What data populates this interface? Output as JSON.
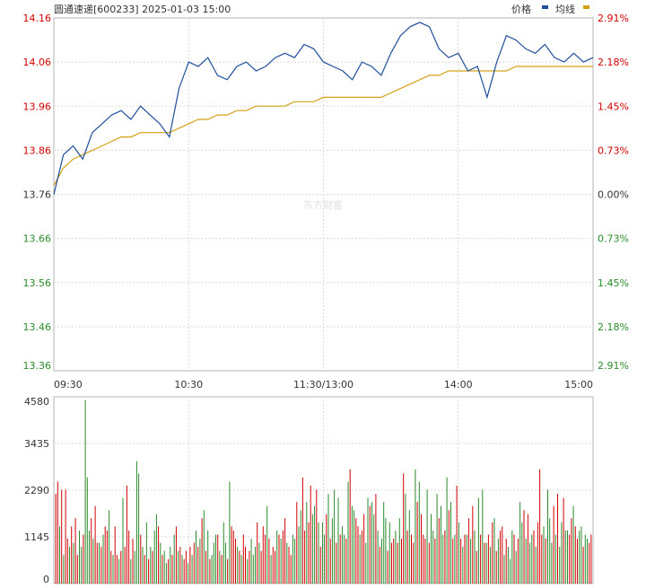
{
  "header": {
    "title": "圆通速递[600233] 2025-01-03 15:00",
    "legend_price": "价格",
    "legend_avg": "均线"
  },
  "watermark": "东方财富",
  "colors": {
    "price_line": "#1f4e9a",
    "avg_line": "#d4a017",
    "up": "#d00000",
    "down": "#2b8a2b",
    "neutral": "#333333"
  },
  "chart_data": [
    {
      "type": "line",
      "title": "圆通速递[600233] 2025-01-03 15:00",
      "prev_close": 13.76,
      "ylim": [
        13.36,
        14.16
      ],
      "y_ticks": [
        "14.16",
        "14.06",
        "13.96",
        "13.86",
        "13.76",
        "13.66",
        "13.56",
        "13.46",
        "13.36"
      ],
      "pct_ticks": [
        "2.91%",
        "2.18%",
        "1.45%",
        "0.73%",
        "0.00%",
        "0.73%",
        "1.45%",
        "2.18%",
        "2.91%"
      ],
      "x_ticks": [
        "09:30",
        "10:30",
        "11:30/13:00",
        "14:00",
        "15:00"
      ],
      "grid": true,
      "series": [
        {
          "name": "价格",
          "values": [
            13.76,
            13.85,
            13.87,
            13.84,
            13.9,
            13.92,
            13.94,
            13.95,
            13.93,
            13.96,
            13.94,
            13.92,
            13.89,
            14.0,
            14.06,
            14.05,
            14.07,
            14.03,
            14.02,
            14.05,
            14.06,
            14.04,
            14.05,
            14.07,
            14.08,
            14.07,
            14.1,
            14.09,
            14.06,
            14.05,
            14.04,
            14.02,
            14.06,
            14.05,
            14.03,
            14.08,
            14.12,
            14.14,
            14.15,
            14.14,
            14.09,
            14.07,
            14.08,
            14.04,
            14.05,
            13.98,
            14.06,
            14.12,
            14.11,
            14.09,
            14.08,
            14.1,
            14.07,
            14.06,
            14.08,
            14.06,
            14.07
          ]
        },
        {
          "name": "均线",
          "values": [
            13.78,
            13.82,
            13.84,
            13.85,
            13.86,
            13.87,
            13.88,
            13.89,
            13.89,
            13.9,
            13.9,
            13.9,
            13.9,
            13.91,
            13.92,
            13.93,
            13.93,
            13.94,
            13.94,
            13.95,
            13.95,
            13.96,
            13.96,
            13.96,
            13.96,
            13.97,
            13.97,
            13.97,
            13.98,
            13.98,
            13.98,
            13.98,
            13.98,
            13.98,
            13.98,
            13.99,
            14.0,
            14.01,
            14.02,
            14.03,
            14.03,
            14.04,
            14.04,
            14.04,
            14.04,
            14.04,
            14.04,
            14.04,
            14.05,
            14.05,
            14.05,
            14.05,
            14.05,
            14.05,
            14.05,
            14.05,
            14.05
          ]
        }
      ]
    },
    {
      "type": "bar",
      "ylim": [
        0,
        4580
      ],
      "y_ticks": [
        "4580",
        "3435",
        "2290",
        "1145",
        "0"
      ],
      "values": [
        2200,
        2500,
        1400,
        2300,
        700,
        2300,
        1100,
        900,
        1400,
        1000,
        1600,
        700,
        1300,
        900,
        1200,
        4500,
        2600,
        1300,
        1600,
        1100,
        1900,
        1000,
        1000,
        900,
        1200,
        1400,
        1300,
        1800,
        800,
        700,
        1400,
        700,
        600,
        800,
        2100,
        900,
        2400,
        1300,
        600,
        1100,
        800,
        3000,
        2700,
        1200,
        900,
        700,
        1500,
        600,
        900,
        800,
        1300,
        1700,
        1400,
        1000,
        700,
        800,
        500,
        600,
        900,
        700,
        1200,
        1400,
        800,
        900,
        700,
        600,
        800,
        500,
        900,
        700,
        1000,
        1300,
        900,
        1100,
        1600,
        1800,
        800,
        1300,
        600,
        700,
        1000,
        1200,
        1200,
        800,
        700,
        1500,
        1000,
        600,
        2500,
        1400,
        1300,
        1100,
        900,
        800,
        700,
        1200,
        900,
        600,
        800,
        1100,
        700,
        900,
        1500,
        1000,
        800,
        1400,
        1200,
        1900,
        1100,
        700,
        900,
        800,
        1300,
        1200,
        1100,
        1300,
        1600,
        1000,
        900,
        700,
        1200,
        1100,
        2000,
        1400,
        1800,
        2600,
        1300,
        2000,
        1500,
        2400,
        1700,
        1900,
        2300,
        1500,
        900,
        1500,
        1200,
        1700,
        2200,
        1100,
        1600,
        2300,
        1000,
        2100,
        1200,
        1400,
        1200,
        1100,
        2500,
        2800,
        1900,
        1800,
        1600,
        1400,
        1200,
        1300,
        1700,
        1000,
        2100,
        1900,
        2000,
        1700,
        2200,
        1300,
        900,
        1100,
        2000,
        1600,
        800,
        1500,
        1000,
        1100,
        1300,
        1000,
        1600,
        1100,
        2700,
        2200,
        1300,
        1800,
        1200,
        1000,
        2800,
        2000,
        2500,
        1700,
        1200,
        1100,
        2300,
        1000,
        1700,
        1300,
        1100,
        2200,
        1600,
        1900,
        1200,
        1300,
        2600,
        1800,
        2000,
        1100,
        1200,
        2400,
        1500,
        1100,
        900,
        1200,
        1200,
        1600,
        1100,
        1900,
        1300,
        800,
        2100,
        1200,
        2300,
        1000,
        1000,
        1200,
        900,
        1500,
        1600,
        800,
        1100,
        1300,
        1400,
        700,
        1100,
        900,
        600,
        1300,
        1200,
        800,
        1100,
        2000,
        1500,
        1800,
        1100,
        1700,
        1000,
        1200,
        1300,
        900,
        1500,
        2800,
        1200,
        1400,
        1100,
        2300,
        1600,
        1000,
        1900,
        1200,
        2200,
        900,
        1500,
        2100,
        1300,
        1300,
        1200,
        1600,
        1900,
        1400,
        1100,
        1300,
        1400,
        900,
        1200,
        1100,
        1000,
        1200
      ]
    }
  ]
}
